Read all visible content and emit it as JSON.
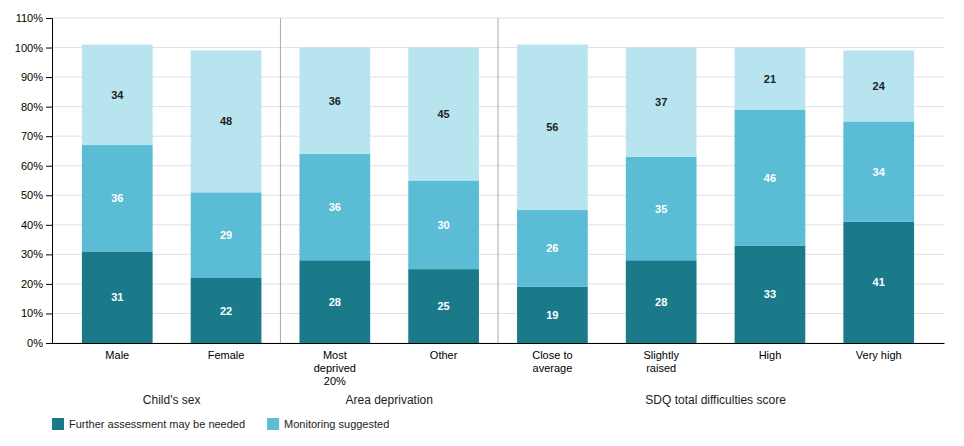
{
  "chart_data": {
    "type": "bar",
    "stacked": true,
    "categories": [
      "Male",
      "Female",
      "Most\ndeprived\n20%",
      "Other",
      "Close to\naverage",
      "Slightly\nraised",
      "High",
      "Very high"
    ],
    "series": [
      {
        "name": "Further assessment may be needed",
        "color": "#1a7a8a",
        "values": [
          31,
          22,
          28,
          25,
          19,
          28,
          33,
          41
        ]
      },
      {
        "name": "Monitoring suggested",
        "color": "#5bbcd6",
        "values": [
          36,
          29,
          36,
          30,
          26,
          35,
          46,
          34
        ]
      },
      {
        "color": "#b8e4f0",
        "values": [
          34,
          48,
          36,
          45,
          56,
          37,
          21,
          24
        ]
      }
    ],
    "groups": [
      {
        "label": "Child's sex",
        "start": 0,
        "end": 1
      },
      {
        "label": "Area deprivation",
        "start": 2,
        "end": 3
      },
      {
        "label": "SDQ total difficulties score",
        "start": 4,
        "end": 7
      }
    ],
    "ylim": [
      0,
      110
    ],
    "yticks": [
      {
        "value": 0,
        "label": "0%"
      },
      {
        "value": 10,
        "label": "10%"
      },
      {
        "value": 20,
        "label": "20%"
      },
      {
        "value": 30,
        "label": "30%"
      },
      {
        "value": 40,
        "label": "40%"
      },
      {
        "value": 50,
        "label": "50%"
      },
      {
        "value": 60,
        "label": "60%"
      },
      {
        "value": 70,
        "label": "70%"
      },
      {
        "value": 80,
        "label": "80%"
      },
      {
        "value": 90,
        "label": "90%"
      },
      {
        "value": 100,
        "label": "100%"
      },
      {
        "value": 110,
        "label": "110%"
      }
    ],
    "grid": true,
    "data_labels": true,
    "legend": "lower left"
  }
}
